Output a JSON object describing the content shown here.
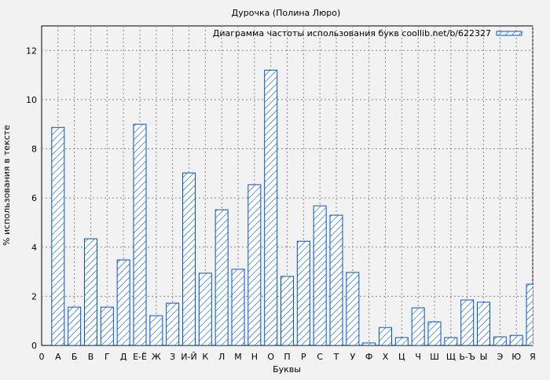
{
  "chart_data": {
    "type": "bar",
    "title": "Дурочка (Полина Люро)",
    "xlabel": "Буквы",
    "ylabel": "% использования в тексте",
    "origin_label": "0",
    "legend": {
      "label": "Диаграмма частоты использования букв coollib.net/b/622327",
      "position": "top-right"
    },
    "ylim": [
      0,
      13
    ],
    "yticks": [
      0,
      2,
      4,
      6,
      8,
      10,
      12
    ],
    "grid": true,
    "bar_color": "#0055cc",
    "background": "#f2f2f2",
    "categories": [
      "А",
      "Б",
      "В",
      "Г",
      "Д",
      "Е-Ё",
      "Ж",
      "З",
      "И-Й",
      "К",
      "Л",
      "М",
      "Н",
      "О",
      "П",
      "Р",
      "С",
      "Т",
      "У",
      "Ф",
      "Х",
      "Ц",
      "Ч",
      "Ш",
      "Щ",
      "Ь-Ъ",
      "Ы",
      "Э",
      "Ю",
      "Я"
    ],
    "values": [
      8.87,
      1.56,
      4.34,
      1.56,
      3.48,
      9.0,
      1.21,
      1.72,
      7.02,
      2.94,
      5.52,
      3.1,
      6.54,
      11.2,
      2.81,
      4.24,
      5.68,
      5.3,
      2.97,
      0.1,
      0.73,
      0.32,
      1.53,
      0.96,
      0.32,
      1.85,
      1.76,
      0.35,
      0.41,
      2.49
    ]
  }
}
